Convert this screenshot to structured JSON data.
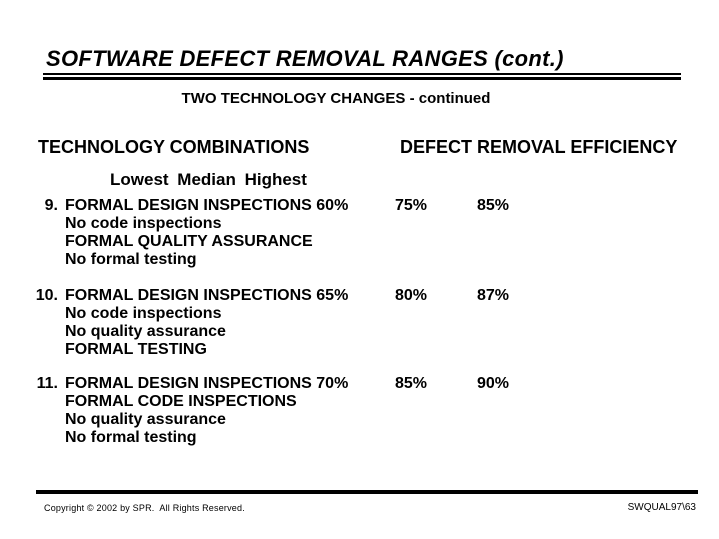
{
  "slide": {
    "title": "SOFTWARE DEFECT REMOVAL RANGES (cont.)",
    "subtitle": "TWO TECHNOLOGY CHANGES - continued",
    "columns": {
      "left_header": "TECHNOLOGY COMBINATIONS",
      "right_header": "DEFECT REMOVAL EFFICIENCY",
      "range_header": "Lowest Median Highest"
    },
    "items": [
      {
        "num": "9.",
        "lines": [
          "FORMAL DESIGN INSPECTIONS 60%",
          "No code inspections",
          "FORMAL QUALITY ASSURANCE",
          "No formal testing"
        ],
        "lowest": "60%",
        "median": "75%",
        "highest": "85%"
      },
      {
        "num": "10.",
        "lines": [
          "FORMAL DESIGN INSPECTIONS 65%",
          "No code inspections",
          "No quality assurance",
          "FORMAL TESTING"
        ],
        "lowest": "65%",
        "median": "80%",
        "highest": "87%"
      },
      {
        "num": "11.",
        "lines": [
          "FORMAL DESIGN INSPECTIONS 70%",
          "FORMAL CODE INSPECTIONS",
          "No quality assurance",
          "No formal testing"
        ],
        "lowest": "70%",
        "median": "85%",
        "highest": "90%"
      }
    ],
    "footer": {
      "copyright": "Copyright © 2002 by SPR.  All Rights Reserved.",
      "doc_ref": "SWQUAL97\\63"
    },
    "colors": {
      "text": "#000000",
      "background": "#ffffff",
      "rule": "#000000"
    }
  }
}
